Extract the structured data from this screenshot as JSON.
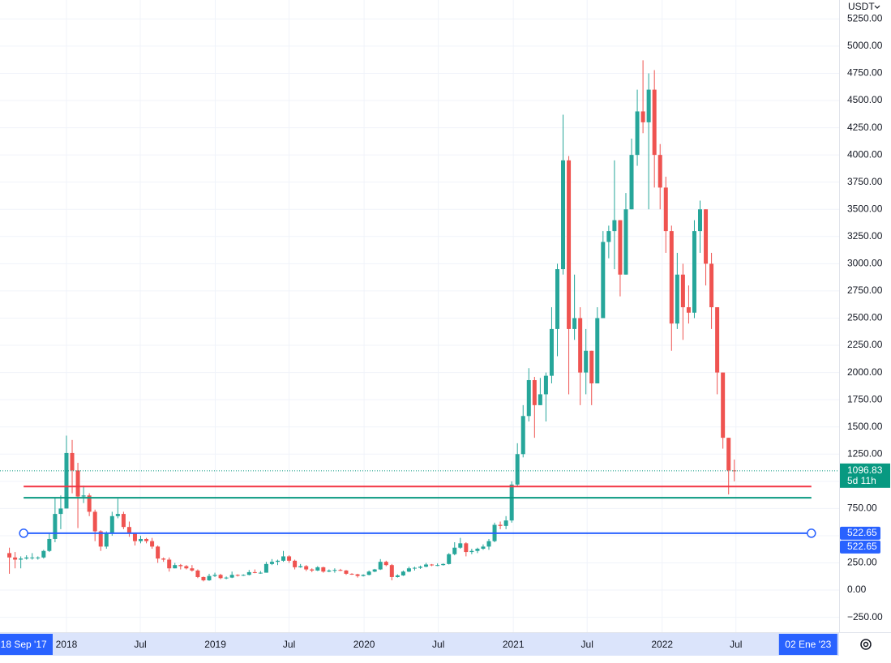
{
  "chart_data": {
    "type": "candlestick",
    "currency": "USDT",
    "up_color": "#26a69a",
    "down_color": "#ef5350",
    "x": [
      "2017-08-14",
      "2017-08-28",
      "2017-09-11",
      "2017-09-25",
      "2017-10-09",
      "2017-10-23",
      "2017-11-06",
      "2017-11-20",
      "2017-12-04",
      "2017-12-18",
      "2018-01-01",
      "2018-01-15",
      "2018-01-29",
      "2018-02-12",
      "2018-02-26",
      "2018-03-12",
      "2018-03-26",
      "2018-04-09",
      "2018-04-23",
      "2018-05-07",
      "2018-05-21",
      "2018-06-04",
      "2018-06-18",
      "2018-07-02",
      "2018-07-16",
      "2018-07-30",
      "2018-08-13",
      "2018-08-27",
      "2018-09-10",
      "2018-09-24",
      "2018-10-08",
      "2018-10-22",
      "2018-11-05",
      "2018-11-19",
      "2018-12-03",
      "2018-12-17",
      "2018-12-31",
      "2019-01-14",
      "2019-01-28",
      "2019-02-11",
      "2019-02-25",
      "2019-03-11",
      "2019-03-25",
      "2019-04-08",
      "2019-04-22",
      "2019-05-06",
      "2019-05-20",
      "2019-06-03",
      "2019-06-17",
      "2019-07-01",
      "2019-07-15",
      "2019-07-29",
      "2019-08-12",
      "2019-08-26",
      "2019-09-09",
      "2019-09-23",
      "2019-10-07",
      "2019-10-21",
      "2019-11-04",
      "2019-11-18",
      "2019-12-02",
      "2019-12-16",
      "2019-12-30",
      "2020-01-13",
      "2020-01-27",
      "2020-02-10",
      "2020-02-24",
      "2020-03-09",
      "2020-03-23",
      "2020-04-06",
      "2020-04-20",
      "2020-05-04",
      "2020-05-18",
      "2020-06-01",
      "2020-06-15",
      "2020-06-29",
      "2020-07-13",
      "2020-07-27",
      "2020-08-10",
      "2020-08-24",
      "2020-09-07",
      "2020-09-21",
      "2020-10-05",
      "2020-10-19",
      "2020-11-02",
      "2020-11-16",
      "2020-11-30",
      "2020-12-14",
      "2020-12-28",
      "2021-01-11",
      "2021-01-25",
      "2021-02-08",
      "2021-02-22",
      "2021-03-08",
      "2021-03-22",
      "2021-04-05",
      "2021-04-19",
      "2021-05-03",
      "2021-05-17",
      "2021-05-31",
      "2021-06-14",
      "2021-06-28",
      "2021-07-12",
      "2021-07-26",
      "2021-08-09",
      "2021-08-23",
      "2021-09-06",
      "2021-09-20",
      "2021-10-04",
      "2021-10-18",
      "2021-11-01",
      "2021-11-15",
      "2021-11-29",
      "2021-12-13",
      "2021-12-27",
      "2022-01-10",
      "2022-01-24",
      "2022-02-07",
      "2022-02-21",
      "2022-03-07",
      "2022-03-21",
      "2022-04-04",
      "2022-04-18",
      "2022-05-02",
      "2022-05-16",
      "2022-05-30",
      "2022-06-13",
      "2022-06-27"
    ],
    "open": [
      340,
      300,
      280,
      290,
      300,
      300,
      300,
      360,
      470,
      700,
      750,
      1260,
      1100,
      860,
      870,
      720,
      540,
      400,
      520,
      680,
      700,
      580,
      520,
      450,
      470,
      450,
      400,
      290,
      280,
      200,
      230,
      220,
      200,
      180,
      120,
      90,
      130,
      140,
      110,
      115,
      140,
      135,
      140,
      165,
      160,
      160,
      240,
      260,
      270,
      310,
      270,
      210,
      220,
      190,
      180,
      210,
      170,
      180,
      185,
      180,
      150,
      145,
      130,
      140,
      170,
      190,
      260,
      230,
      120,
      135,
      170,
      200,
      205,
      215,
      235,
      230,
      230,
      240,
      330,
      390,
      430,
      350,
      360,
      380,
      400,
      450,
      600,
      590,
      640,
      970,
      1250,
      1600,
      1930,
      1700,
      1800,
      1970,
      2400,
      2950,
      3950,
      2400,
      2500,
      2000,
      2200,
      1900,
      2500,
      3200,
      3300,
      3400,
      2900,
      3500,
      4000,
      4400,
      4300,
      4600,
      4000,
      3700,
      3300,
      2450,
      2900,
      2600,
      2550,
      3300,
      3500,
      3000,
      2600,
      2000,
      1400,
      1100
    ],
    "high": [
      390,
      350,
      310,
      320,
      340,
      310,
      370,
      520,
      850,
      870,
      1420,
      1380,
      1170,
      960,
      890,
      740,
      550,
      540,
      720,
      840,
      720,
      630,
      530,
      500,
      480,
      480,
      410,
      300,
      300,
      250,
      240,
      230,
      230,
      190,
      125,
      150,
      160,
      150,
      125,
      170,
      145,
      145,
      185,
      190,
      175,
      260,
      285,
      280,
      360,
      320,
      280,
      240,
      230,
      200,
      220,
      215,
      190,
      200,
      195,
      185,
      155,
      150,
      145,
      180,
      195,
      285,
      270,
      240,
      145,
      180,
      215,
      215,
      225,
      250,
      240,
      245,
      245,
      340,
      440,
      480,
      440,
      380,
      390,
      420,
      470,
      620,
      630,
      680,
      1000,
      1350,
      1700,
      2040,
      1960,
      1950,
      2000,
      2600,
      3000,
      4370,
      3990,
      2900,
      2600,
      2400,
      2200,
      2600,
      3300,
      3350,
      3950,
      3400,
      3650,
      4150,
      4600,
      4870,
      4750,
      4780,
      4100,
      3800,
      3350,
      3100,
      3000,
      2800,
      3400,
      3580,
      3500,
      3100,
      2600,
      2000,
      1400,
      1200
    ],
    "low": [
      150,
      200,
      200,
      280,
      280,
      280,
      290,
      350,
      440,
      560,
      750,
      890,
      570,
      800,
      680,
      450,
      360,
      380,
      500,
      660,
      560,
      490,
      410,
      430,
      430,
      380,
      250,
      260,
      170,
      200,
      190,
      190,
      170,
      110,
      80,
      85,
      120,
      100,
      100,
      110,
      125,
      130,
      135,
      155,
      150,
      160,
      230,
      230,
      260,
      250,
      190,
      205,
      175,
      165,
      175,
      160,
      165,
      160,
      175,
      140,
      140,
      115,
      125,
      135,
      165,
      185,
      220,
      90,
      115,
      130,
      165,
      180,
      195,
      210,
      220,
      220,
      225,
      235,
      320,
      380,
      310,
      330,
      340,
      370,
      370,
      440,
      560,
      560,
      620,
      950,
      1220,
      1550,
      1400,
      1700,
      1550,
      1900,
      2150,
      2900,
      1800,
      2300,
      1700,
      1800,
      1700,
      1900,
      2500,
      3050,
      2950,
      2700,
      2900,
      3500,
      3900,
      4200,
      3500,
      3700,
      3500,
      3100,
      2200,
      2400,
      2300,
      2450,
      2500,
      3100,
      2800,
      2400,
      1800,
      1300,
      880,
      1000
    ],
    "close": [
      300,
      280,
      290,
      300,
      300,
      300,
      360,
      470,
      700,
      750,
      1260,
      1100,
      860,
      870,
      720,
      540,
      400,
      520,
      680,
      700,
      580,
      520,
      450,
      470,
      450,
      400,
      290,
      280,
      200,
      230,
      220,
      200,
      180,
      120,
      90,
      130,
      140,
      110,
      115,
      140,
      135,
      140,
      165,
      160,
      160,
      240,
      260,
      270,
      310,
      270,
      210,
      220,
      190,
      180,
      210,
      170,
      180,
      185,
      180,
      150,
      145,
      130,
      140,
      170,
      190,
      260,
      230,
      120,
      135,
      170,
      200,
      205,
      215,
      235,
      230,
      230,
      240,
      330,
      390,
      430,
      350,
      360,
      380,
      400,
      450,
      600,
      590,
      640,
      970,
      1250,
      1600,
      1930,
      1700,
      1800,
      1970,
      2400,
      2950,
      3950,
      2400,
      2500,
      2000,
      2200,
      1900,
      2500,
      3200,
      3300,
      3400,
      2900,
      3500,
      4000,
      4400,
      4300,
      4600,
      4000,
      3700,
      3300,
      2450,
      2900,
      2600,
      2550,
      3300,
      3500,
      3000,
      2600,
      2000,
      1400,
      1100,
      1096.83
    ],
    "last_price": 1096.83,
    "countdown": "5d 11h",
    "last_price_color": "#089981",
    "hlines": [
      {
        "price": 952,
        "color": "#f23645"
      },
      {
        "price": 849,
        "color": "#089981"
      }
    ],
    "ray": {
      "price": 522.65,
      "color": "#2962ff",
      "start": "2017-09-18",
      "end": "2023-01-02",
      "start_label": "18 Sep '17",
      "end_label": "02 Ene '23"
    },
    "xlim": [
      "2017-07-22",
      "2023-03-11"
    ],
    "xticks": [
      {
        "value": "2018-01-01",
        "label": "2018"
      },
      {
        "value": "2018-07-01",
        "label": "Jul"
      },
      {
        "value": "2019-01-01",
        "label": "2019"
      },
      {
        "value": "2019-07-01",
        "label": "Jul"
      },
      {
        "value": "2020-01-01",
        "label": "2020"
      },
      {
        "value": "2020-07-01",
        "label": "Jul"
      },
      {
        "value": "2021-01-01",
        "label": "2021"
      },
      {
        "value": "2021-07-01",
        "label": "Jul"
      },
      {
        "value": "2022-01-01",
        "label": "2022"
      },
      {
        "value": "2022-07-01",
        "label": "Jul"
      }
    ],
    "ylim": [
      -387,
      5424
    ],
    "yticks": [
      {
        "value": -250,
        "label": "−250.00"
      },
      {
        "value": 0,
        "label": "0.00"
      },
      {
        "value": 250,
        "label": "250.00"
      },
      {
        "value": 500,
        "label": "500.00"
      },
      {
        "value": 750,
        "label": "750.00"
      },
      {
        "value": 1000,
        "label": "1000.00"
      },
      {
        "value": 1250,
        "label": "1250.00"
      },
      {
        "value": 1500,
        "label": "1500.00"
      },
      {
        "value": 1750,
        "label": "1750.00"
      },
      {
        "value": 2000,
        "label": "2000.00"
      },
      {
        "value": 2250,
        "label": "2250.00"
      },
      {
        "value": 2500,
        "label": "2500.00"
      },
      {
        "value": 2750,
        "label": "2750.00"
      },
      {
        "value": 3000,
        "label": "3000.00"
      },
      {
        "value": 3250,
        "label": "3250.00"
      },
      {
        "value": 3500,
        "label": "3500.00"
      },
      {
        "value": 3750,
        "label": "3750.00"
      },
      {
        "value": 4000,
        "label": "4000.00"
      },
      {
        "value": 4250,
        "label": "4250.00"
      },
      {
        "value": 4500,
        "label": "4500.00"
      },
      {
        "value": 4750,
        "label": "4750.00"
      },
      {
        "value": 5000,
        "label": "5000.00"
      },
      {
        "value": 5250,
        "label": "5250.00"
      }
    ],
    "grid": true
  }
}
